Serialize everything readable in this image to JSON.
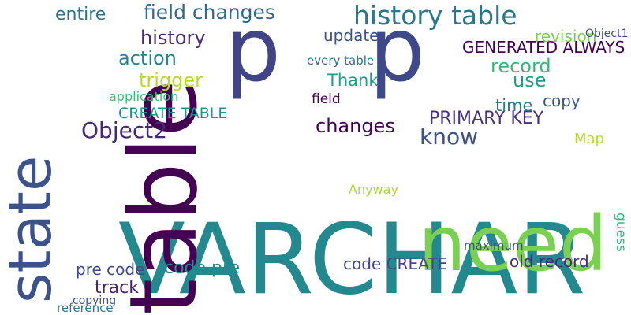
{
  "words": [
    {
      "text": "VARCHAR",
      "color": "#23898e"
    },
    {
      "text": "table",
      "color": "#440154"
    },
    {
      "text": "need",
      "color": "#7ad151"
    },
    {
      "text": "state",
      "color": "#3b528b"
    },
    {
      "text": "p",
      "color": "#414487"
    },
    {
      "text": "p",
      "color": "#3e4989"
    },
    {
      "text": "history table",
      "color": "#2a788e"
    },
    {
      "text": "field changes",
      "color": "#31688e"
    },
    {
      "text": "history",
      "color": "#482878"
    },
    {
      "text": "GENERATED ALWAYS",
      "color": "#440154"
    },
    {
      "text": "update",
      "color": "#3b528b"
    },
    {
      "text": "record",
      "color": "#35b779"
    },
    {
      "text": "trigger",
      "color": "#b5de2b"
    },
    {
      "text": "action",
      "color": "#26828e"
    },
    {
      "text": "revision",
      "color": "#7ad151"
    },
    {
      "text": "use",
      "color": "#1f9e89"
    },
    {
      "text": "Object2",
      "color": "#482878"
    },
    {
      "text": "CREATE TABLE",
      "color": "#21918c"
    },
    {
      "text": "PRIMARY KEY",
      "color": "#46327e"
    },
    {
      "text": "know",
      "color": "#3b528b"
    },
    {
      "text": "changes",
      "color": "#440154"
    },
    {
      "text": "code CREATE",
      "color": "#404688"
    },
    {
      "text": "old record",
      "color": "#472c7a"
    },
    {
      "text": "code pre",
      "color": "#228d8d"
    },
    {
      "text": "pre code",
      "color": "#3e4989"
    },
    {
      "text": "entire",
      "color": "#2c728e"
    },
    {
      "text": "time",
      "color": "#2a788e"
    },
    {
      "text": "copy",
      "color": "#38598c"
    },
    {
      "text": "every table",
      "color": "#2c728e"
    },
    {
      "text": "Thank",
      "color": "#1f9e89"
    },
    {
      "text": "field",
      "color": "#440154"
    },
    {
      "text": "Map",
      "color": "#b5de2b"
    },
    {
      "text": "application",
      "color": "#3dbc74"
    },
    {
      "text": "Anyway",
      "color": "#a8db34"
    },
    {
      "text": "track",
      "color": "#482173"
    },
    {
      "text": "Object1",
      "color": "#3e4989"
    },
    {
      "text": "maximum",
      "color": "#3b528b"
    },
    {
      "text": "guess",
      "color": "#35b779"
    },
    {
      "text": "copying",
      "color": "#3b528b"
    },
    {
      "text": "reference",
      "color": "#2a788e"
    }
  ]
}
